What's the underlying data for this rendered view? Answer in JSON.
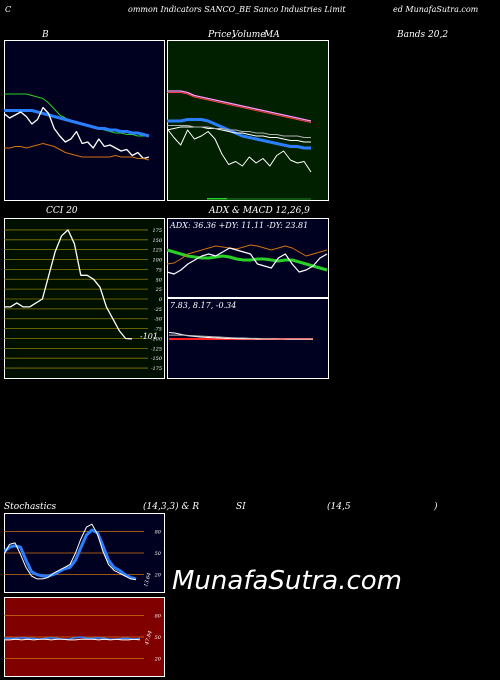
{
  "header": {
    "left": "C",
    "middle": "ommon  Indicators SANCO_BE Sanco  Industries Limit",
    "right": "ed MunafaSutra.com"
  },
  "titles": {
    "bands_b": "B",
    "price_title": "Price,",
    "volume_title": "Volume",
    "ma_title": "MA",
    "bands_right": "Bands 20,2",
    "cci": "CCI 20",
    "adx_macd": "ADX  & MACD 12,26,9",
    "stoch": "Stochastics",
    "stoch_params": "(14,3,3) & R",
    "si": "SI",
    "rsi_params": "(14,5",
    "rsi_close": ")"
  },
  "watermark": "MunafaSutra.com",
  "colors": {
    "bands_bg": "#000020",
    "price_bg": "#002000",
    "cci_bg": "#001000",
    "cci_grid": "#8a7a00",
    "stoch_bg": "#000020",
    "rsi_bg": "#800000",
    "orange": "#d07010",
    "blue": "#2a7fff",
    "green": "#28d028",
    "white": "#ffffff"
  },
  "chart_data": [
    {
      "name_panel": "bollinger",
      "type": "line",
      "series": [
        {
          "color": "#28d028",
          "values": [
            68,
            68,
            68,
            68,
            68,
            67,
            66,
            65,
            62,
            58,
            54,
            52,
            50,
            49,
            48,
            47,
            46,
            45,
            44,
            43,
            42,
            42,
            41,
            41,
            40,
            40,
            40
          ]
        },
        {
          "color": "#2a7fff",
          "values": [
            57,
            57,
            57,
            57,
            57,
            57,
            56,
            55,
            54,
            53,
            52,
            51,
            50,
            49,
            48,
            47,
            46,
            45,
            45,
            44,
            44,
            43,
            43,
            42,
            42,
            41,
            40
          ]
        },
        {
          "color": "#ffffff",
          "values": [
            55,
            52,
            54,
            56,
            53,
            48,
            51,
            59,
            55,
            45,
            40,
            36,
            38,
            43,
            35,
            36,
            32,
            38,
            33,
            34,
            32,
            30,
            31,
            27,
            29,
            25,
            26
          ]
        },
        {
          "color": "#d07010",
          "values": [
            32,
            32,
            33,
            33,
            32,
            33,
            34,
            35,
            34,
            33,
            31,
            29,
            28,
            27,
            26,
            26,
            26,
            26,
            26,
            26,
            27,
            26,
            26,
            26,
            25,
            25,
            24
          ]
        }
      ],
      "ylim": [
        0,
        100
      ]
    },
    {
      "name_panel": "price_ma",
      "type": "line",
      "series": [
        {
          "color": "#ff9aff",
          "values": [
            70,
            70,
            70,
            69,
            67,
            66,
            65,
            64,
            63,
            62,
            61,
            60,
            59,
            58,
            57,
            56,
            55,
            54,
            53,
            52,
            51,
            50
          ]
        },
        {
          "color": "#ff4040",
          "values": [
            69,
            69,
            69,
            68,
            66,
            65,
            64,
            63,
            62,
            61,
            60,
            59,
            58,
            57,
            56,
            55,
            54,
            53,
            52,
            51,
            50,
            49
          ]
        },
        {
          "color": "#2a7fff",
          "values": [
            50,
            50,
            50,
            51,
            51,
            51,
            50,
            48,
            46,
            44,
            42,
            40,
            39,
            38,
            37,
            36,
            35,
            34,
            33,
            33,
            32,
            32
          ]
        },
        {
          "color": "#ffffff",
          "values": [
            44,
            45,
            46,
            46,
            46,
            46,
            45,
            45,
            44,
            43,
            42,
            42,
            41,
            40,
            40,
            39,
            39,
            38,
            37,
            37,
            36,
            36
          ]
        },
        {
          "color": "#b0b0b0",
          "values": [
            47,
            47,
            47,
            47,
            46,
            46,
            46,
            45,
            45,
            44,
            44,
            43,
            43,
            42,
            42,
            41,
            41,
            40,
            40,
            40,
            39,
            39
          ]
        },
        {
          "color": "#ffffff",
          "values": [
            45,
            39,
            34,
            44,
            38,
            40,
            43,
            38,
            28,
            21,
            23,
            20,
            26,
            22,
            25,
            20,
            27,
            30,
            24,
            22,
            23,
            16
          ]
        }
      ],
      "ylim": [
        0,
        100
      ]
    },
    {
      "name_panel": "cci",
      "type": "line",
      "ticks": [
        "175",
        "150",
        "125",
        "100",
        "75",
        "50",
        "25",
        "0",
        "-25",
        "-50",
        "-75",
        "-100",
        "-125",
        "-150",
        "-175"
      ],
      "value_label": "-101",
      "series": [
        {
          "color": "#ffffff",
          "values": [
            -20,
            -20,
            -10,
            -20,
            -20,
            -10,
            0,
            60,
            120,
            160,
            175,
            140,
            60,
            60,
            50,
            30,
            -20,
            -50,
            -80,
            -100,
            -101
          ]
        }
      ],
      "ylim": [
        -190,
        190
      ]
    },
    {
      "name_panel": "adx",
      "type": "line",
      "label": "ADX: 36.36  +DY: 11.11 -DY: 23.81",
      "series": [
        {
          "color": "#28d028",
          "values": [
            44,
            42,
            40,
            38,
            37,
            36,
            36,
            37,
            38,
            37,
            35,
            34,
            34,
            35,
            35,
            34,
            33,
            34,
            34,
            32,
            30,
            28,
            26,
            24
          ]
        },
        {
          "color": "#d07010",
          "values": [
            30,
            31,
            35,
            40,
            42,
            44,
            46,
            48,
            47,
            46,
            45,
            47,
            49,
            48,
            46,
            44,
            46,
            48,
            46,
            42,
            38,
            40,
            42,
            44
          ]
        },
        {
          "color": "#ffffff",
          "values": [
            22,
            20,
            24,
            30,
            34,
            38,
            40,
            38,
            42,
            46,
            44,
            42,
            40,
            30,
            28,
            26,
            36,
            40,
            30,
            22,
            24,
            28,
            36,
            40
          ]
        }
      ],
      "ylim": [
        0,
        60
      ]
    },
    {
      "name_panel": "macd",
      "type": "line",
      "label": "7.83,  8.17,  -0.34",
      "series": [
        {
          "color": "#ffffff",
          "values": [
            20,
            18,
            14,
            10,
            8,
            6,
            5,
            4,
            3,
            2,
            2,
            1,
            1,
            1,
            0,
            0,
            0,
            0,
            0,
            -1,
            -1,
            -1,
            -1,
            -1
          ]
        },
        {
          "color": "#c0c0c0",
          "values": [
            12,
            12,
            12,
            11,
            10,
            9,
            8,
            7,
            6,
            5,
            4,
            3,
            3,
            2,
            2,
            1,
            1,
            1,
            0,
            0,
            0,
            0,
            0,
            0
          ]
        }
      ],
      "ylim": [
        -40,
        40
      ]
    },
    {
      "name_panel": "stochastics",
      "type": "line",
      "ticks": [
        "80",
        "50",
        "20"
      ],
      "value_label": "13.64",
      "series": [
        {
          "color": "#2a7fff",
          "values": [
            52,
            58,
            60,
            58,
            40,
            24,
            20,
            18,
            18,
            20,
            24,
            28,
            30,
            40,
            58,
            75,
            82,
            78,
            60,
            40,
            30,
            26,
            20,
            16,
            14
          ]
        },
        {
          "color": "#ffffff",
          "values": [
            48,
            62,
            64,
            48,
            30,
            18,
            14,
            14,
            16,
            22,
            26,
            30,
            34,
            50,
            70,
            86,
            90,
            76,
            52,
            34,
            26,
            22,
            18,
            14,
            13
          ]
        }
      ],
      "ylim": [
        0,
        100
      ]
    },
    {
      "name_panel": "rsi",
      "type": "line",
      "ticks": [
        "80",
        "50",
        "20"
      ],
      "value_label": "47.84",
      "series": [
        {
          "color": "#2a7fff",
          "values": [
            48,
            48,
            48,
            49,
            48,
            48,
            47,
            48,
            49,
            48,
            47,
            47,
            49,
            50,
            48,
            48,
            49,
            48,
            47,
            47,
            48,
            48,
            47,
            48
          ]
        },
        {
          "color": "#ffffff",
          "values": [
            46,
            46,
            47,
            46,
            47,
            46,
            47,
            47,
            46,
            47,
            47,
            46,
            46,
            47,
            47,
            47,
            46,
            47,
            46,
            47,
            46,
            46,
            47,
            46
          ]
        }
      ],
      "ylim": [
        0,
        100
      ]
    }
  ]
}
